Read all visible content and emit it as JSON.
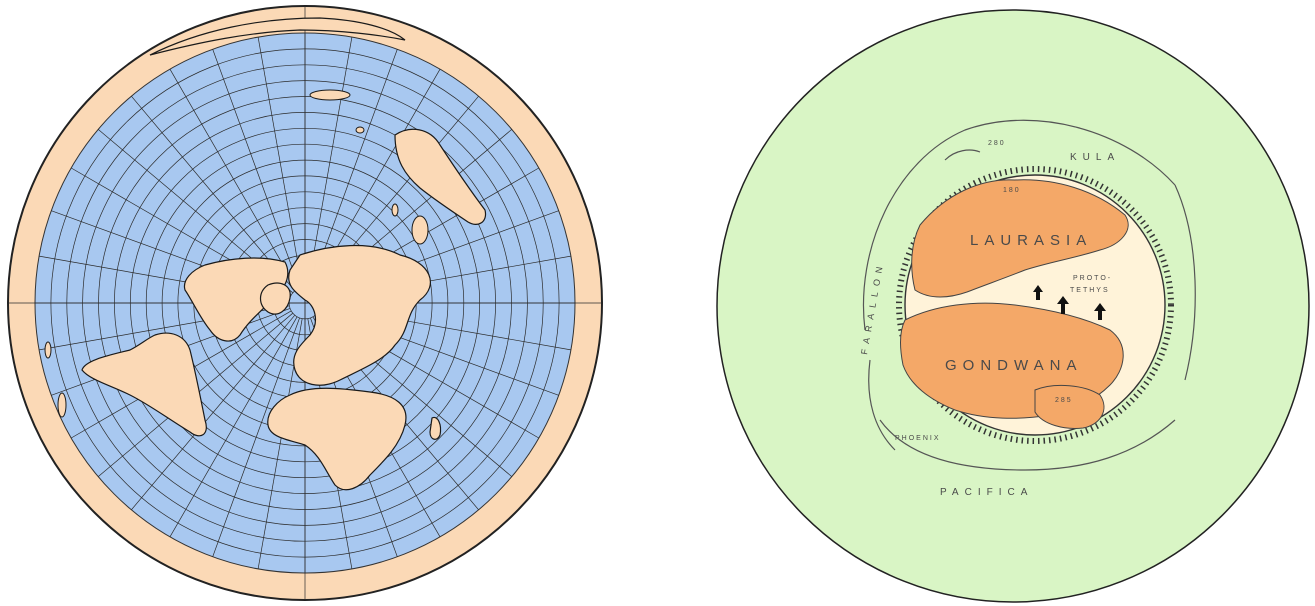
{
  "left_map": {
    "projection": "azimuthal-equidistant-north-polar",
    "colors": {
      "ocean": "#a8c8f0",
      "land": "#fbd9b6",
      "rim": "#fbd9b6",
      "grid": "#2b2b2b",
      "outline": "#222222"
    }
  },
  "right_map": {
    "colors": {
      "background": "#d9f5c5",
      "land": "#f4a868",
      "shelf": "#fff3d9",
      "lines": "#555555"
    },
    "labels": {
      "laurasia": "LAURASIA",
      "gondwana": "GONDWANA",
      "kula": "KULA",
      "farallon": "FARALLON",
      "pacifica": "PACIFICA",
      "phoenix": "PHOENIX",
      "proto_tethys_1": "PROTO-",
      "proto_tethys_2": "TETHYS",
      "age_top": "280",
      "age_mid": "180",
      "age_bottom": "285"
    }
  }
}
